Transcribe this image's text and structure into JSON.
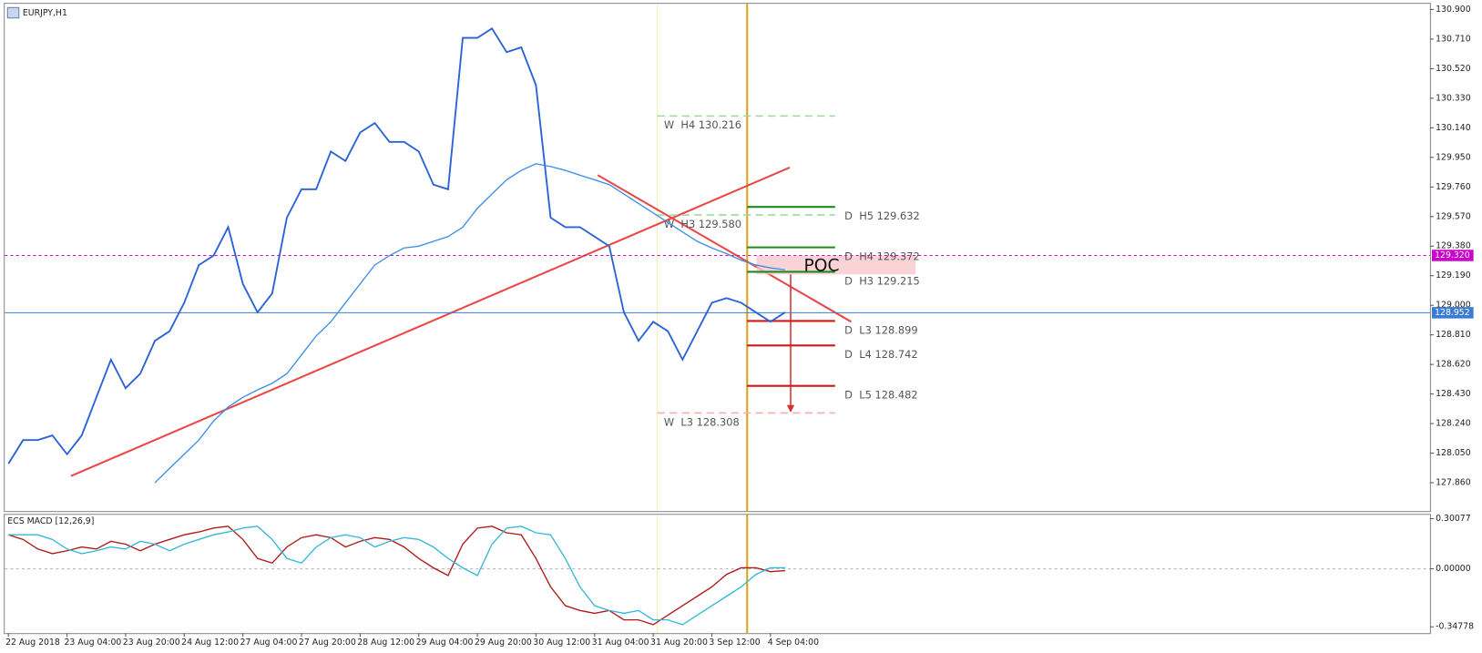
{
  "chart_data": [
    {
      "type": "line",
      "title": "EURJPY,H1",
      "x": [
        0,
        4,
        8,
        12,
        16,
        20,
        24,
        28,
        32,
        36,
        40,
        44,
        48,
        52,
        56,
        60,
        64,
        68,
        72,
        76,
        80,
        84,
        88,
        92,
        96,
        100,
        104,
        108,
        112,
        116,
        120,
        124,
        128,
        132,
        136,
        140,
        144,
        148,
        152,
        156,
        160,
        164,
        168,
        172,
        176,
        180,
        184,
        188,
        192,
        196,
        200,
        204,
        208,
        212
      ],
      "xlim": [
        -1,
        388
      ],
      "ylim": [
        127.678,
        130.943
      ],
      "yticks": [
        {
          "value": 130.9,
          "label": "130.900"
        },
        {
          "value": 130.71,
          "label": "130.710"
        },
        {
          "value": 130.52,
          "label": "130.520"
        },
        {
          "value": 130.33,
          "label": "130.330"
        },
        {
          "value": 130.14,
          "label": "130.140"
        },
        {
          "value": 129.95,
          "label": "129.950"
        },
        {
          "value": 129.76,
          "label": "129.760"
        },
        {
          "value": 129.57,
          "label": "129.570"
        },
        {
          "value": 129.38,
          "label": "129.380"
        },
        {
          "value": 129.19,
          "label": "129.190"
        },
        {
          "value": 129.0,
          "label": "129.000"
        },
        {
          "value": 128.81,
          "label": "128.810"
        },
        {
          "value": 128.62,
          "label": "128.620"
        },
        {
          "value": 128.43,
          "label": "128.430"
        },
        {
          "value": 128.24,
          "label": "128.240"
        },
        {
          "value": 128.05,
          "label": "128.050"
        },
        {
          "value": 127.86,
          "label": "127.860"
        }
      ],
      "series": [
        {
          "color": "#2a63d6",
          "values": [
            127.982,
            128.134,
            128.134,
            128.164,
            128.043,
            128.164,
            128.408,
            128.651,
            128.468,
            128.56,
            128.772,
            128.833,
            129.016,
            129.259,
            129.319,
            129.502,
            129.137,
            128.955,
            129.076,
            129.563,
            129.745,
            129.745,
            129.988,
            129.927,
            130.11,
            130.171,
            130.049,
            130.049,
            129.988,
            129.775,
            129.745,
            130.718,
            130.718,
            130.778,
            130.626,
            130.657,
            130.414,
            129.563,
            129.502,
            129.502,
            129.441,
            129.38,
            128.955,
            128.772,
            128.894,
            128.833,
            128.651,
            128.833,
            129.016,
            129.046,
            129.016,
            128.955,
            128.894,
            128.955
          ]
        },
        {
          "color": "#3d8ee8",
          "values": [
            null,
            null,
            null,
            null,
            null,
            null,
            null,
            null,
            null,
            null,
            127.86,
            127.952,
            128.043,
            128.134,
            128.256,
            128.347,
            128.408,
            128.456,
            128.499,
            128.56,
            128.681,
            128.803,
            128.894,
            129.016,
            129.137,
            129.259,
            129.319,
            129.368,
            129.38,
            129.411,
            129.441,
            129.502,
            129.623,
            129.715,
            129.806,
            129.867,
            129.909,
            129.891,
            129.867,
            129.836,
            129.806,
            129.775,
            129.715,
            129.654,
            129.593,
            129.532,
            129.471,
            129.411,
            129.368,
            129.332,
            129.289,
            129.259,
            129.24,
            129.228
          ]
        }
      ],
      "levels": [
        {
          "label": "W  H4 130.216",
          "value": 130.216,
          "kind": "W",
          "color": "#9fd99f"
        },
        {
          "label": "D  H5 129.632",
          "value": 129.632,
          "kind": "D",
          "color": "#1e8a1e"
        },
        {
          "label": "W  H3 129.580",
          "value": 129.58,
          "kind": "W",
          "color": "#9fd99f"
        },
        {
          "label": "D  H4 129.372",
          "value": 129.372,
          "kind": "D",
          "color": "#1e8a1e"
        },
        {
          "label": "D  H3 129.215",
          "value": 129.215,
          "kind": "D",
          "color": "#1e8a1e"
        },
        {
          "label": "D  L3 128.899",
          "value": 128.899,
          "kind": "D",
          "color": "#d01818"
        },
        {
          "label": "D  L4 128.742",
          "value": 128.742,
          "kind": "D",
          "color": "#d01818"
        },
        {
          "label": "D  L5 128.482",
          "value": 128.482,
          "kind": "D",
          "color": "#d01818"
        },
        {
          "label": "W  L3 128.308",
          "value": 128.308,
          "kind": "W",
          "color": "#f0b0b0"
        }
      ],
      "price_tags": [
        {
          "value": 129.32,
          "label": "129.320",
          "color": "#cc00cc"
        },
        {
          "value": 128.952,
          "label": "128.952",
          "color": "#3a7bd5"
        }
      ],
      "annotation": "POC"
    },
    {
      "type": "line",
      "title": "ECS MACD [12,26,9]",
      "x": [
        0,
        4,
        8,
        12,
        16,
        20,
        24,
        28,
        32,
        36,
        40,
        44,
        48,
        52,
        56,
        60,
        64,
        68,
        72,
        76,
        80,
        84,
        88,
        92,
        96,
        100,
        104,
        108,
        112,
        116,
        120,
        124,
        128,
        132,
        136,
        140,
        144,
        148,
        152,
        156,
        160,
        164,
        168,
        172,
        176,
        180,
        184,
        188,
        192,
        196,
        200,
        204,
        208,
        212
      ],
      "xlim": [
        -1,
        388
      ],
      "ylim": [
        -0.38,
        0.318
      ],
      "yticks": [
        0.30077,
        {
          "value": 0,
          "label": "0.00000"
        },
        -0.34778
      ],
      "xticks": [
        {
          "value": 0,
          "label": "22 Aug 2018"
        },
        {
          "value": 16,
          "label": "23 Aug 04:00"
        },
        {
          "value": 32,
          "label": "23 Aug 20:00"
        },
        {
          "value": 48,
          "label": "24 Aug 12:00"
        },
        {
          "value": 64,
          "label": "27 Aug 04:00"
        },
        {
          "value": 80,
          "label": "27 Aug 20:00"
        },
        {
          "value": 96,
          "label": "28 Aug 12:00"
        },
        {
          "value": 112,
          "label": "29 Aug 04:00"
        },
        {
          "value": 128,
          "label": "29 Aug 20:00"
        },
        {
          "value": 144,
          "label": "30 Aug 12:00"
        },
        {
          "value": 160,
          "label": "31 Aug 04:00"
        },
        {
          "value": 176,
          "label": "31 Aug 20:00"
        },
        {
          "value": 192,
          "label": "3 Sep 12:00"
        },
        {
          "value": 208,
          "label": "4 Sep 04:00"
        }
      ],
      "series": [
        {
          "color": "#b01818",
          "values": [
            0.204,
            0.176,
            0.119,
            0.091,
            0.108,
            0.131,
            0.119,
            0.165,
            0.148,
            0.108,
            0.148,
            0.176,
            0.204,
            0.221,
            0.244,
            0.255,
            0.176,
            0.062,
            0.034,
            0.131,
            0.187,
            0.204,
            0.187,
            0.131,
            0.165,
            0.187,
            0.176,
            0.131,
            0.062,
            0.006,
            -0.04,
            0.148,
            0.244,
            0.255,
            0.216,
            0.204,
            0.062,
            -0.108,
            -0.221,
            -0.25,
            -0.267,
            -0.25,
            -0.306,
            -0.306,
            -0.335,
            -0.278,
            -0.221,
            -0.165,
            -0.108,
            -0.034,
            0.006,
            0.006,
            -0.017,
            -0.011
          ]
        },
        {
          "color": "#35b8d8",
          "values": [
            0.204,
            0.204,
            0.204,
            0.176,
            0.119,
            0.091,
            0.108,
            0.131,
            0.119,
            0.165,
            0.148,
            0.108,
            0.148,
            0.176,
            0.204,
            0.221,
            0.244,
            0.255,
            0.176,
            0.062,
            0.034,
            0.131,
            0.187,
            0.204,
            0.187,
            0.131,
            0.165,
            0.187,
            0.176,
            0.131,
            0.062,
            0.006,
            -0.04,
            0.148,
            0.244,
            0.255,
            0.216,
            0.204,
            0.062,
            -0.108,
            -0.221,
            -0.25,
            -0.267,
            -0.25,
            -0.306,
            -0.306,
            -0.335,
            -0.278,
            -0.221,
            -0.165,
            -0.108,
            -0.034,
            0.006,
            0.006
          ]
        }
      ]
    }
  ]
}
